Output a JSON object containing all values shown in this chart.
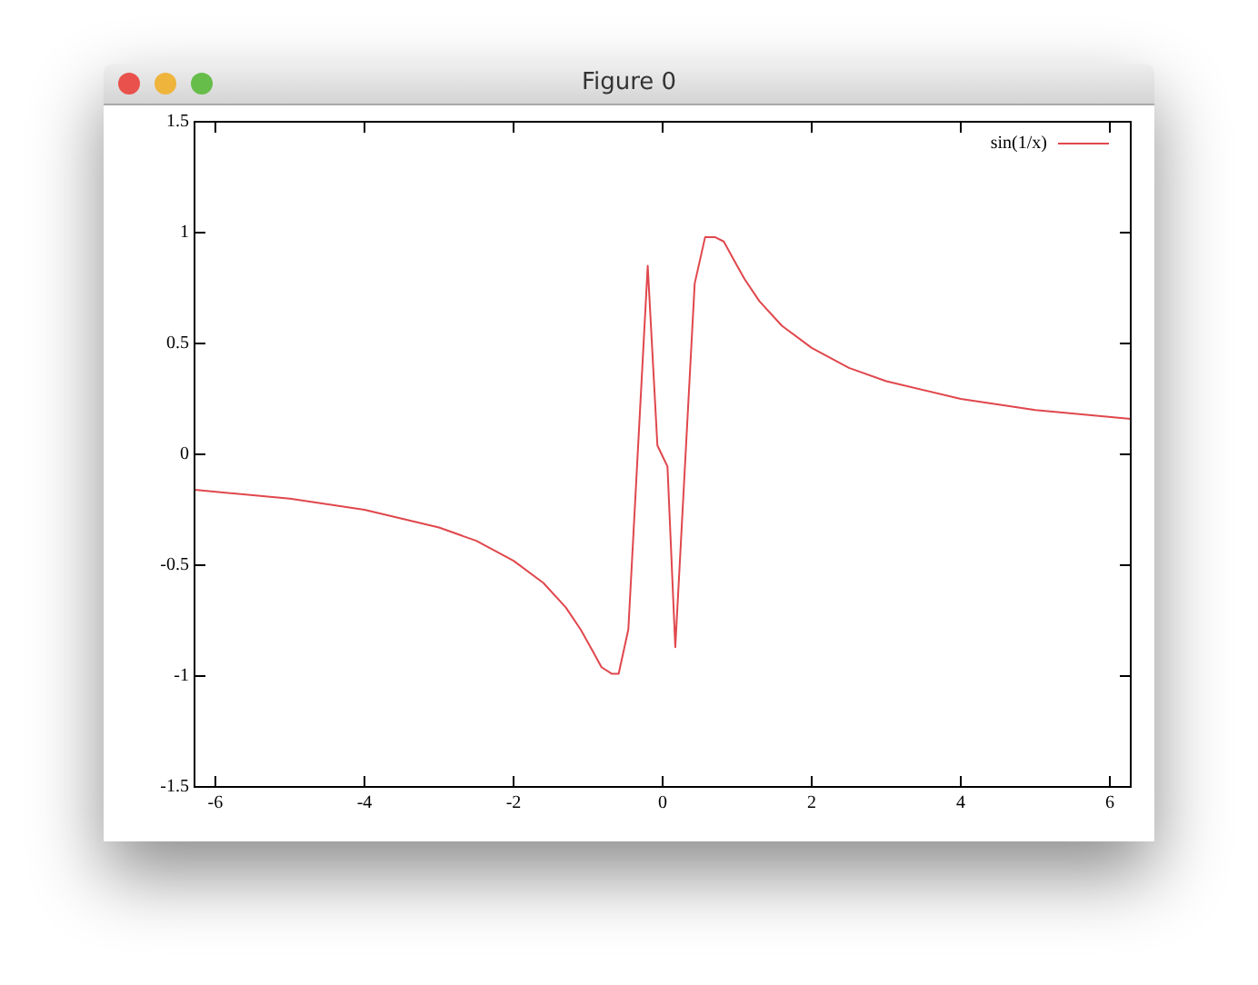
{
  "chart_data": {
    "type": "line",
    "title": "Figure 0",
    "xlim": [
      -6.28,
      6.28
    ],
    "xticks": [
      -6,
      -4,
      -2,
      0,
      2,
      4,
      6
    ],
    "ylim": [
      -1.5,
      1.5
    ],
    "yticks": [
      -1.5,
      -1,
      -0.5,
      0,
      0.5,
      1,
      1.5
    ],
    "grid": false,
    "legend": "top right",
    "marker": "none",
    "line_style": "solid",
    "series": [
      {
        "name": "sin(1/x)",
        "color": "#e0474c",
        "x": [
          -6.28,
          -5,
          -4,
          -3,
          -2.5,
          -2,
          -1.6,
          -1.3,
          -1.1,
          -0.95,
          -0.82,
          -0.68,
          -0.59,
          -0.46,
          -0.2,
          -0.07,
          0.065,
          0.17,
          0.43,
          0.57,
          0.7,
          0.82,
          0.95,
          1.1,
          1.3,
          1.6,
          2,
          2.5,
          3,
          4,
          5,
          6.28
        ],
        "values": [
          -0.16,
          -0.2,
          -0.25,
          -0.33,
          -0.39,
          -0.48,
          -0.58,
          -0.69,
          -0.79,
          -0.88,
          -0.96,
          -0.99,
          -0.99,
          -0.79,
          0.85,
          0.04,
          -0.055,
          -0.87,
          0.77,
          0.98,
          0.98,
          0.96,
          0.88,
          0.79,
          0.69,
          0.58,
          0.48,
          0.39,
          0.33,
          0.25,
          0.2,
          0.16
        ]
      }
    ]
  }
}
